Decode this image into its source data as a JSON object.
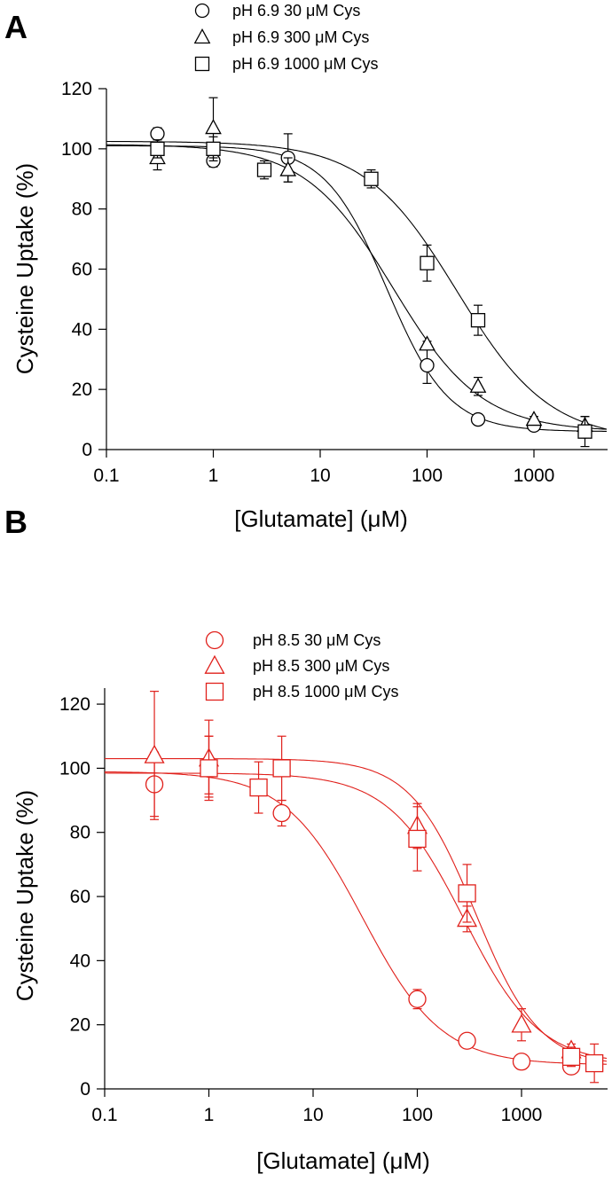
{
  "chart_data": [
    {
      "panel": "A",
      "type": "scatter",
      "xscale": "log",
      "xlabel": "[Glutamate] (μM)",
      "ylabel": "Cysteine Uptake (%)",
      "xlim": [
        0.1,
        5000
      ],
      "ylim": [
        0,
        120
      ],
      "xticks": [
        0.1,
        1,
        10,
        100,
        1000
      ],
      "xtick_labels": [
        "0.1",
        "1",
        "10",
        "100",
        "1000"
      ],
      "yticks": [
        0,
        20,
        40,
        60,
        80,
        100,
        120
      ],
      "ytick_labels": [
        "0",
        "20",
        "40",
        "60",
        "80",
        "100",
        "120"
      ],
      "grid": false,
      "legend_position": "top-center",
      "color": "#000000",
      "series": [
        {
          "name": "pH 6.9 30 μM Cys",
          "marker": "circle",
          "points": [
            {
              "x": 0.3,
              "y": 105,
              "err": 2
            },
            {
              "x": 1,
              "y": 96,
              "err": 2
            },
            {
              "x": 5,
              "y": 97,
              "err": 8
            },
            {
              "x": 100,
              "y": 28,
              "err": 6
            },
            {
              "x": 300,
              "y": 10,
              "err": 1
            },
            {
              "x": 1000,
              "y": 8,
              "err": 1
            },
            {
              "x": 3000,
              "y": 6,
              "err": 2
            }
          ],
          "fit": {
            "top": 101,
            "bottom": 6,
            "ec50": 42,
            "hill": 1.5
          }
        },
        {
          "name": "pH 6.9 300 μM Cys",
          "marker": "triangle",
          "points": [
            {
              "x": 0.3,
              "y": 97,
              "err": 4
            },
            {
              "x": 1,
              "y": 107,
              "err": 10
            },
            {
              "x": 5,
              "y": 93,
              "err": 4
            },
            {
              "x": 100,
              "y": 35,
              "err": 1
            },
            {
              "x": 300,
              "y": 21,
              "err": 3
            },
            {
              "x": 1000,
              "y": 10,
              "err": 1
            },
            {
              "x": 3000,
              "y": 8,
              "err": 3
            }
          ],
          "fit": {
            "top": 101.5,
            "bottom": 6,
            "ec50": 48,
            "hill": 1.05
          }
        },
        {
          "name": "pH 6.9 1000 μM Cys",
          "marker": "square",
          "points": [
            {
              "x": 0.3,
              "y": 100,
              "err": 3
            },
            {
              "x": 1,
              "y": 100,
              "err": 4
            },
            {
              "x": 3,
              "y": 93,
              "err": 3
            },
            {
              "x": 30,
              "y": 90,
              "err": 3
            },
            {
              "x": 100,
              "y": 62,
              "err": 6
            },
            {
              "x": 300,
              "y": 43,
              "err": 5
            },
            {
              "x": 3000,
              "y": 6,
              "err": 5
            }
          ],
          "fit": {
            "top": 102.5,
            "bottom": 3,
            "ec50": 190,
            "hill": 1.0
          }
        }
      ]
    },
    {
      "panel": "B",
      "type": "scatter",
      "xscale": "log",
      "xlabel": "[Glutamate] (μM)",
      "ylabel": "Cysteine Uptake (%)",
      "xlim": [
        0.1,
        5000
      ],
      "ylim": [
        0,
        125
      ],
      "xticks": [
        0.1,
        1,
        10,
        100,
        1000
      ],
      "xtick_labels": [
        "0.1",
        "1",
        "10",
        "100",
        "1000"
      ],
      "yticks": [
        0,
        20,
        40,
        60,
        80,
        100,
        120
      ],
      "ytick_labels": [
        "0",
        "20",
        "40",
        "60",
        "80",
        "100",
        "120"
      ],
      "grid": false,
      "legend_position": "top-center",
      "color": "#e0201b",
      "series": [
        {
          "name": "pH 8.5 30 μM Cys",
          "marker": "circle",
          "points": [
            {
              "x": 0.3,
              "y": 95,
              "err": 10
            },
            {
              "x": 1,
              "y": 101,
              "err": 9
            },
            {
              "x": 5,
              "y": 86,
              "err": 4
            },
            {
              "x": 100,
              "y": 28,
              "err": 3
            },
            {
              "x": 300,
              "y": 15,
              "err": 1
            },
            {
              "x": 1000,
              "y": 8.5,
              "err": 1
            },
            {
              "x": 3000,
              "y": 7,
              "err": 1
            }
          ],
          "fit": {
            "top": 99,
            "bottom": 7.5,
            "ec50": 30,
            "hill": 1.15
          }
        },
        {
          "name": "pH 8.5 300 μM Cys",
          "marker": "triangle",
          "points": [
            {
              "x": 0.3,
              "y": 104,
              "err": 20
            },
            {
              "x": 1,
              "y": 103,
              "err": 12
            },
            {
              "x": 100,
              "y": 82,
              "err": 7
            },
            {
              "x": 300,
              "y": 53,
              "err": 4
            },
            {
              "x": 1000,
              "y": 20,
              "err": 5
            },
            {
              "x": 3000,
              "y": 12,
              "err": 2
            }
          ],
          "fit": {
            "top": 98.5,
            "bottom": 7.5,
            "ec50": 280,
            "hill": 1.2
          }
        },
        {
          "name": "pH 8.5 1000 μM Cys",
          "marker": "square",
          "points": [
            {
              "x": 1,
              "y": 100,
              "err": 10
            },
            {
              "x": 3,
              "y": 94,
              "err": 8
            },
            {
              "x": 5,
              "y": 100,
              "err": 10
            },
            {
              "x": 100,
              "y": 78,
              "err": 10
            },
            {
              "x": 300,
              "y": 61,
              "err": 9
            },
            {
              "x": 3000,
              "y": 10,
              "err": 3
            },
            {
              "x": 5000,
              "y": 8,
              "err": 6
            }
          ],
          "fit": {
            "top": 103,
            "bottom": 7,
            "ec50": 360,
            "hill": 1.4
          }
        }
      ]
    }
  ]
}
